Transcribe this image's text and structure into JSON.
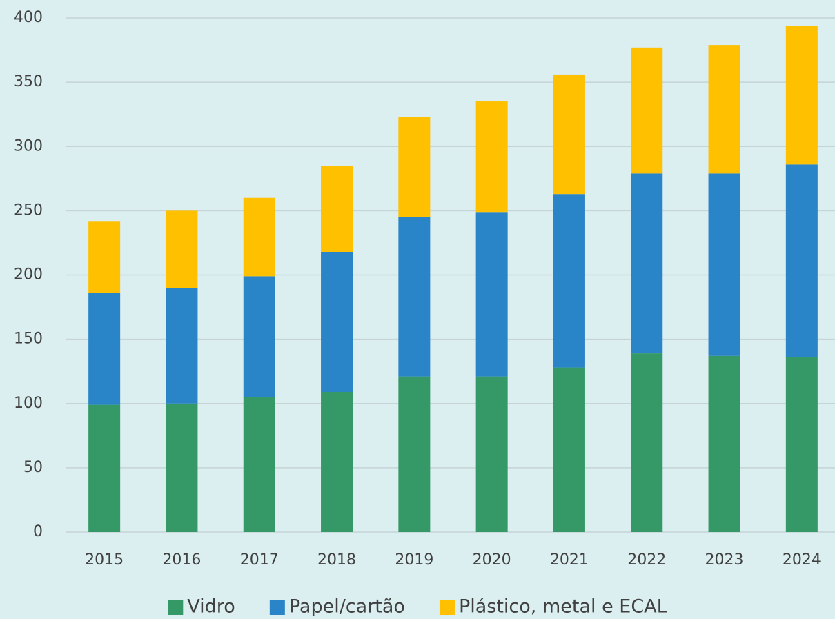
{
  "chart_data": {
    "type": "stacked_bar",
    "categories": [
      "2015",
      "2016",
      "2017",
      "2018",
      "2019",
      "2020",
      "2021",
      "2022",
      "2023",
      "2024"
    ],
    "series": [
      {
        "name": "Vidro",
        "color": "#349966",
        "values": [
          99,
          100,
          105,
          109,
          121,
          121,
          128,
          139,
          137,
          136
        ]
      },
      {
        "name": "Papel/cartão",
        "color": "#2a84c8",
        "values": [
          87,
          90,
          94,
          109,
          124,
          128,
          135,
          140,
          142,
          150
        ]
      },
      {
        "name": "Plástico, metal e ECAL",
        "color": "#ffc000",
        "values": [
          56,
          60,
          61,
          67,
          78,
          86,
          93,
          98,
          100,
          108
        ]
      }
    ],
    "ylim": [
      0,
      400
    ],
    "yticks": [
      0,
      50,
      100,
      150,
      200,
      250,
      300,
      350,
      400
    ],
    "grid": true,
    "legend": "bottom"
  }
}
